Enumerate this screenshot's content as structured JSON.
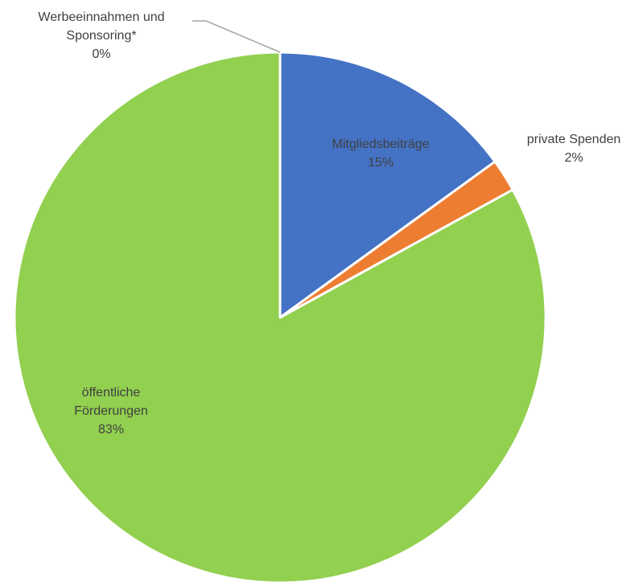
{
  "chart_data": {
    "type": "pie",
    "title": "",
    "series": [
      {
        "values": [
          15,
          2,
          83,
          0
        ],
        "categories": [
          "Mitgliedsbeiträge",
          "private Spenden",
          "öffentliche Förderungen",
          "Werbeeinnahmen und Sponsoring*"
        ],
        "labels": [
          {
            "lines": [
              "Mitgliedsbeiträge"
            ],
            "pct": "15%"
          },
          {
            "lines": [
              "private Spenden"
            ],
            "pct": "2%"
          },
          {
            "lines": [
              "öffentliche",
              "Förderungen"
            ],
            "pct": "83%"
          },
          {
            "lines": [
              "Werbeeinnahmen und",
              "Sponsoring*"
            ],
            "pct": "0%"
          }
        ],
        "colors": [
          "#4472C4",
          "#ED7D31",
          "#92D050",
          "#A5A5A5"
        ],
        "label_colors": [
          "#404040",
          "#404040",
          "#404040",
          "#404040"
        ]
      }
    ],
    "start_angle_deg": 0,
    "direction": "clockwise",
    "border_color": "#FFFFFF",
    "leader_line_color": "#A6A6A6",
    "legend": "none"
  }
}
